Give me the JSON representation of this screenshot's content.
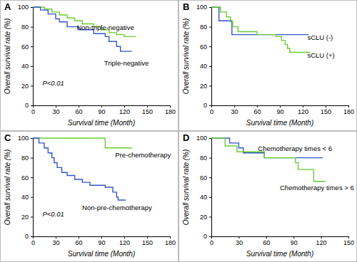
{
  "chart_data": [
    {
      "type": "line",
      "title": "A",
      "x_label": "Survival time (Month)",
      "y_label": "Overall survival rate (%)",
      "xlim": [
        0,
        180
      ],
      "xticks": [
        0,
        30,
        60,
        90,
        120,
        150,
        180
      ],
      "ylim": [
        0,
        100
      ],
      "yticks": [
        0,
        20,
        40,
        60,
        80,
        100
      ],
      "line_style": "step",
      "annotations": [
        "P<0.01"
      ],
      "series": [
        {
          "name": "Non-triple-negative",
          "color": "#66cc33",
          "x": [
            0,
            15,
            25,
            35,
            45,
            55,
            65,
            80,
            90,
            100,
            110,
            120,
            135
          ],
          "values": [
            100,
            98,
            95,
            92,
            89,
            86,
            83,
            80,
            77,
            74,
            72,
            70,
            70
          ]
        },
        {
          "name": "Triple-negative",
          "color": "#3355cc",
          "x": [
            0,
            10,
            20,
            30,
            35,
            45,
            60,
            80,
            95,
            100,
            110,
            115,
            130
          ],
          "values": [
            100,
            97,
            93,
            88,
            85,
            80,
            77,
            73,
            70,
            65,
            60,
            55,
            55
          ]
        }
      ]
    },
    {
      "type": "line",
      "title": "B",
      "x_label": "Survival time (Month)",
      "y_label": "Overall survival rate (%)",
      "xlim": [
        0,
        180
      ],
      "xticks": [
        0,
        30,
        60,
        90,
        120,
        150,
        180
      ],
      "ylim": [
        0,
        100
      ],
      "yticks": [
        0,
        20,
        40,
        60,
        80,
        100
      ],
      "line_style": "step",
      "annotations": [],
      "series": [
        {
          "name": "sCLU (-)",
          "color": "#3355cc",
          "x": [
            0,
            10,
            27,
            128
          ],
          "values": [
            100,
            86,
            72,
            72
          ]
        },
        {
          "name": "sCLU (+)",
          "color": "#66cc33",
          "x": [
            0,
            12,
            20,
            25,
            28,
            35,
            60,
            85,
            92,
            97,
            100,
            103,
            130
          ],
          "values": [
            100,
            95,
            90,
            85,
            80,
            75,
            72,
            70,
            66,
            62,
            58,
            54,
            54
          ]
        }
      ]
    },
    {
      "type": "line",
      "title": "C",
      "x_label": "Survival time (Month)",
      "y_label": "Overall survival rate (%)",
      "xlim": [
        0,
        180
      ],
      "xticks": [
        0,
        30,
        60,
        90,
        120,
        150,
        180
      ],
      "ylim": [
        0,
        100
      ],
      "yticks": [
        0,
        20,
        40,
        60,
        80,
        100
      ],
      "line_style": "step",
      "annotations": [
        "P<0.01"
      ],
      "series": [
        {
          "name": "Pre-chemotherapy",
          "color": "#66cc33",
          "x": [
            0,
            95,
            130
          ],
          "values": [
            100,
            90,
            90
          ]
        },
        {
          "name": "Non-pre-chemotherapy",
          "color": "#3355cc",
          "x": [
            0,
            8,
            15,
            20,
            25,
            28,
            32,
            38,
            45,
            55,
            65,
            75,
            95,
            105,
            110,
            112,
            122
          ],
          "values": [
            100,
            95,
            90,
            85,
            80,
            75,
            70,
            65,
            62,
            58,
            55,
            52,
            50,
            45,
            40,
            37,
            37
          ]
        }
      ]
    },
    {
      "type": "line",
      "title": "D",
      "x_label": "Survival time (Month)",
      "y_label": "Overall survival rate (%)",
      "xlim": [
        0,
        150
      ],
      "xticks": [
        0,
        30,
        60,
        90,
        120,
        150
      ],
      "ylim": [
        0,
        100
      ],
      "yticks": [
        0,
        20,
        40,
        60,
        80,
        100
      ],
      "line_style": "step",
      "annotations": [],
      "series": [
        {
          "name": "Chemotherapy times < 6",
          "color": "#3355cc",
          "x": [
            0,
            20,
            30,
            35,
            58,
            122
          ],
          "values": [
            100,
            95,
            90,
            85,
            80,
            80
          ]
        },
        {
          "name": "Chemotherapy times > 6",
          "color": "#66cc33",
          "x": [
            0,
            15,
            28,
            58,
            92,
            95,
            112,
            125
          ],
          "values": [
            100,
            92,
            86,
            80,
            75,
            68,
            56,
            56
          ]
        }
      ]
    }
  ]
}
